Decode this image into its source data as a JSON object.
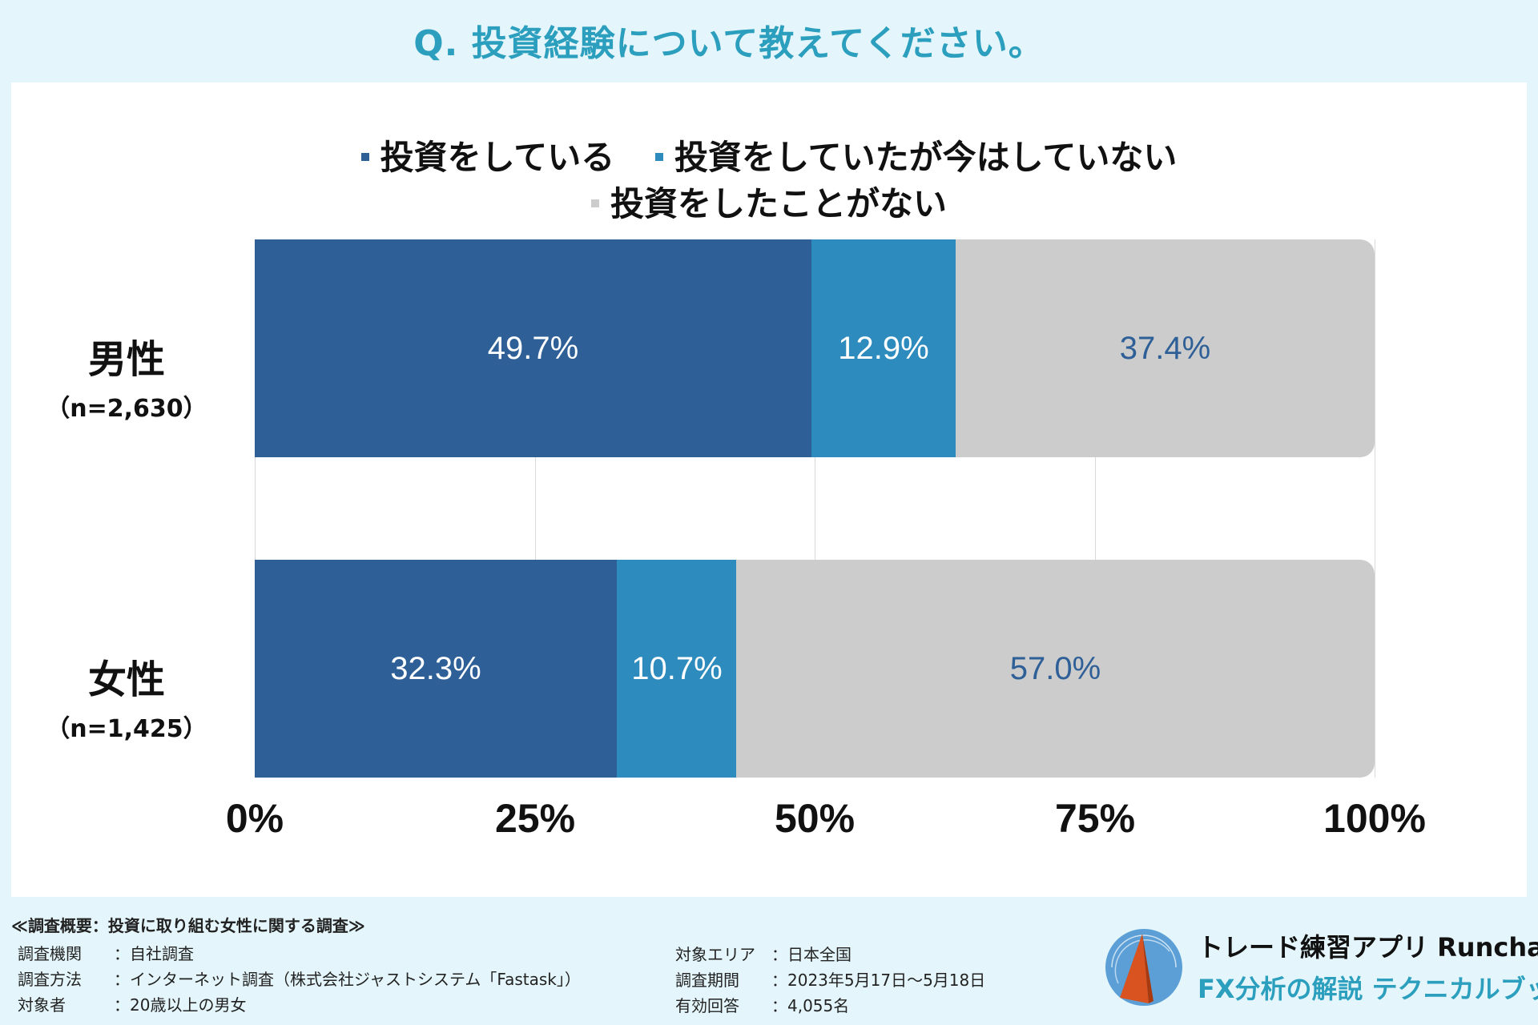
{
  "title": "Q. 投資経験について教えてください。",
  "chart_data": {
    "type": "bar",
    "orientation": "horizontal",
    "stacked": true,
    "categories": [
      {
        "name": "男性",
        "n": "（n=2,630）"
      },
      {
        "name": "女性",
        "n": "（n=1,425）"
      }
    ],
    "series": [
      {
        "name": "投資をしている",
        "color": "#2e5f97",
        "label_color": "#ffffff",
        "values": [
          49.7,
          32.3
        ],
        "labels": [
          "49.7%",
          "32.3%"
        ]
      },
      {
        "name": "投資をしていたが今はしていない",
        "color": "#2e8bbd",
        "label_color": "#ffffff",
        "values": [
          12.9,
          10.7
        ],
        "labels": [
          "12.9%",
          "10.7%"
        ]
      },
      {
        "name": "投資をしたことがない",
        "color": "#cccccc",
        "label_color": "#2e5f97",
        "values": [
          37.4,
          57.0
        ],
        "labels": [
          "37.4%",
          "57.0%"
        ]
      }
    ],
    "xlim": [
      0,
      100
    ],
    "x_ticks": [
      0,
      25,
      50,
      75,
      100
    ],
    "x_tick_labels": [
      "0%",
      "25%",
      "50%",
      "75%",
      "100%"
    ],
    "grid": true,
    "legend_position": "top-center"
  },
  "footer": {
    "heading": "≪調査概要：投資に取り組む女性に関する調査≫",
    "left": [
      {
        "k": "調査機関",
        "v": "：自社調査"
      },
      {
        "k": "調査方法",
        "v": "：インターネット調査（株式会社ジャストシステム「Fastask」）"
      },
      {
        "k": "対象者",
        "v": "：20歳以上の男女"
      }
    ],
    "right": [
      {
        "k": "対象エリア",
        "v": "：日本全国"
      },
      {
        "k": "調査期間",
        "v": "：2023年5月17日〜5月18日"
      },
      {
        "k": "有効回答",
        "v": "：4,055名"
      }
    ]
  },
  "brand": {
    "line1": "トレード練習アプリ Runcha",
    "line2": "FX分析の解説 テクニカルブック"
  }
}
